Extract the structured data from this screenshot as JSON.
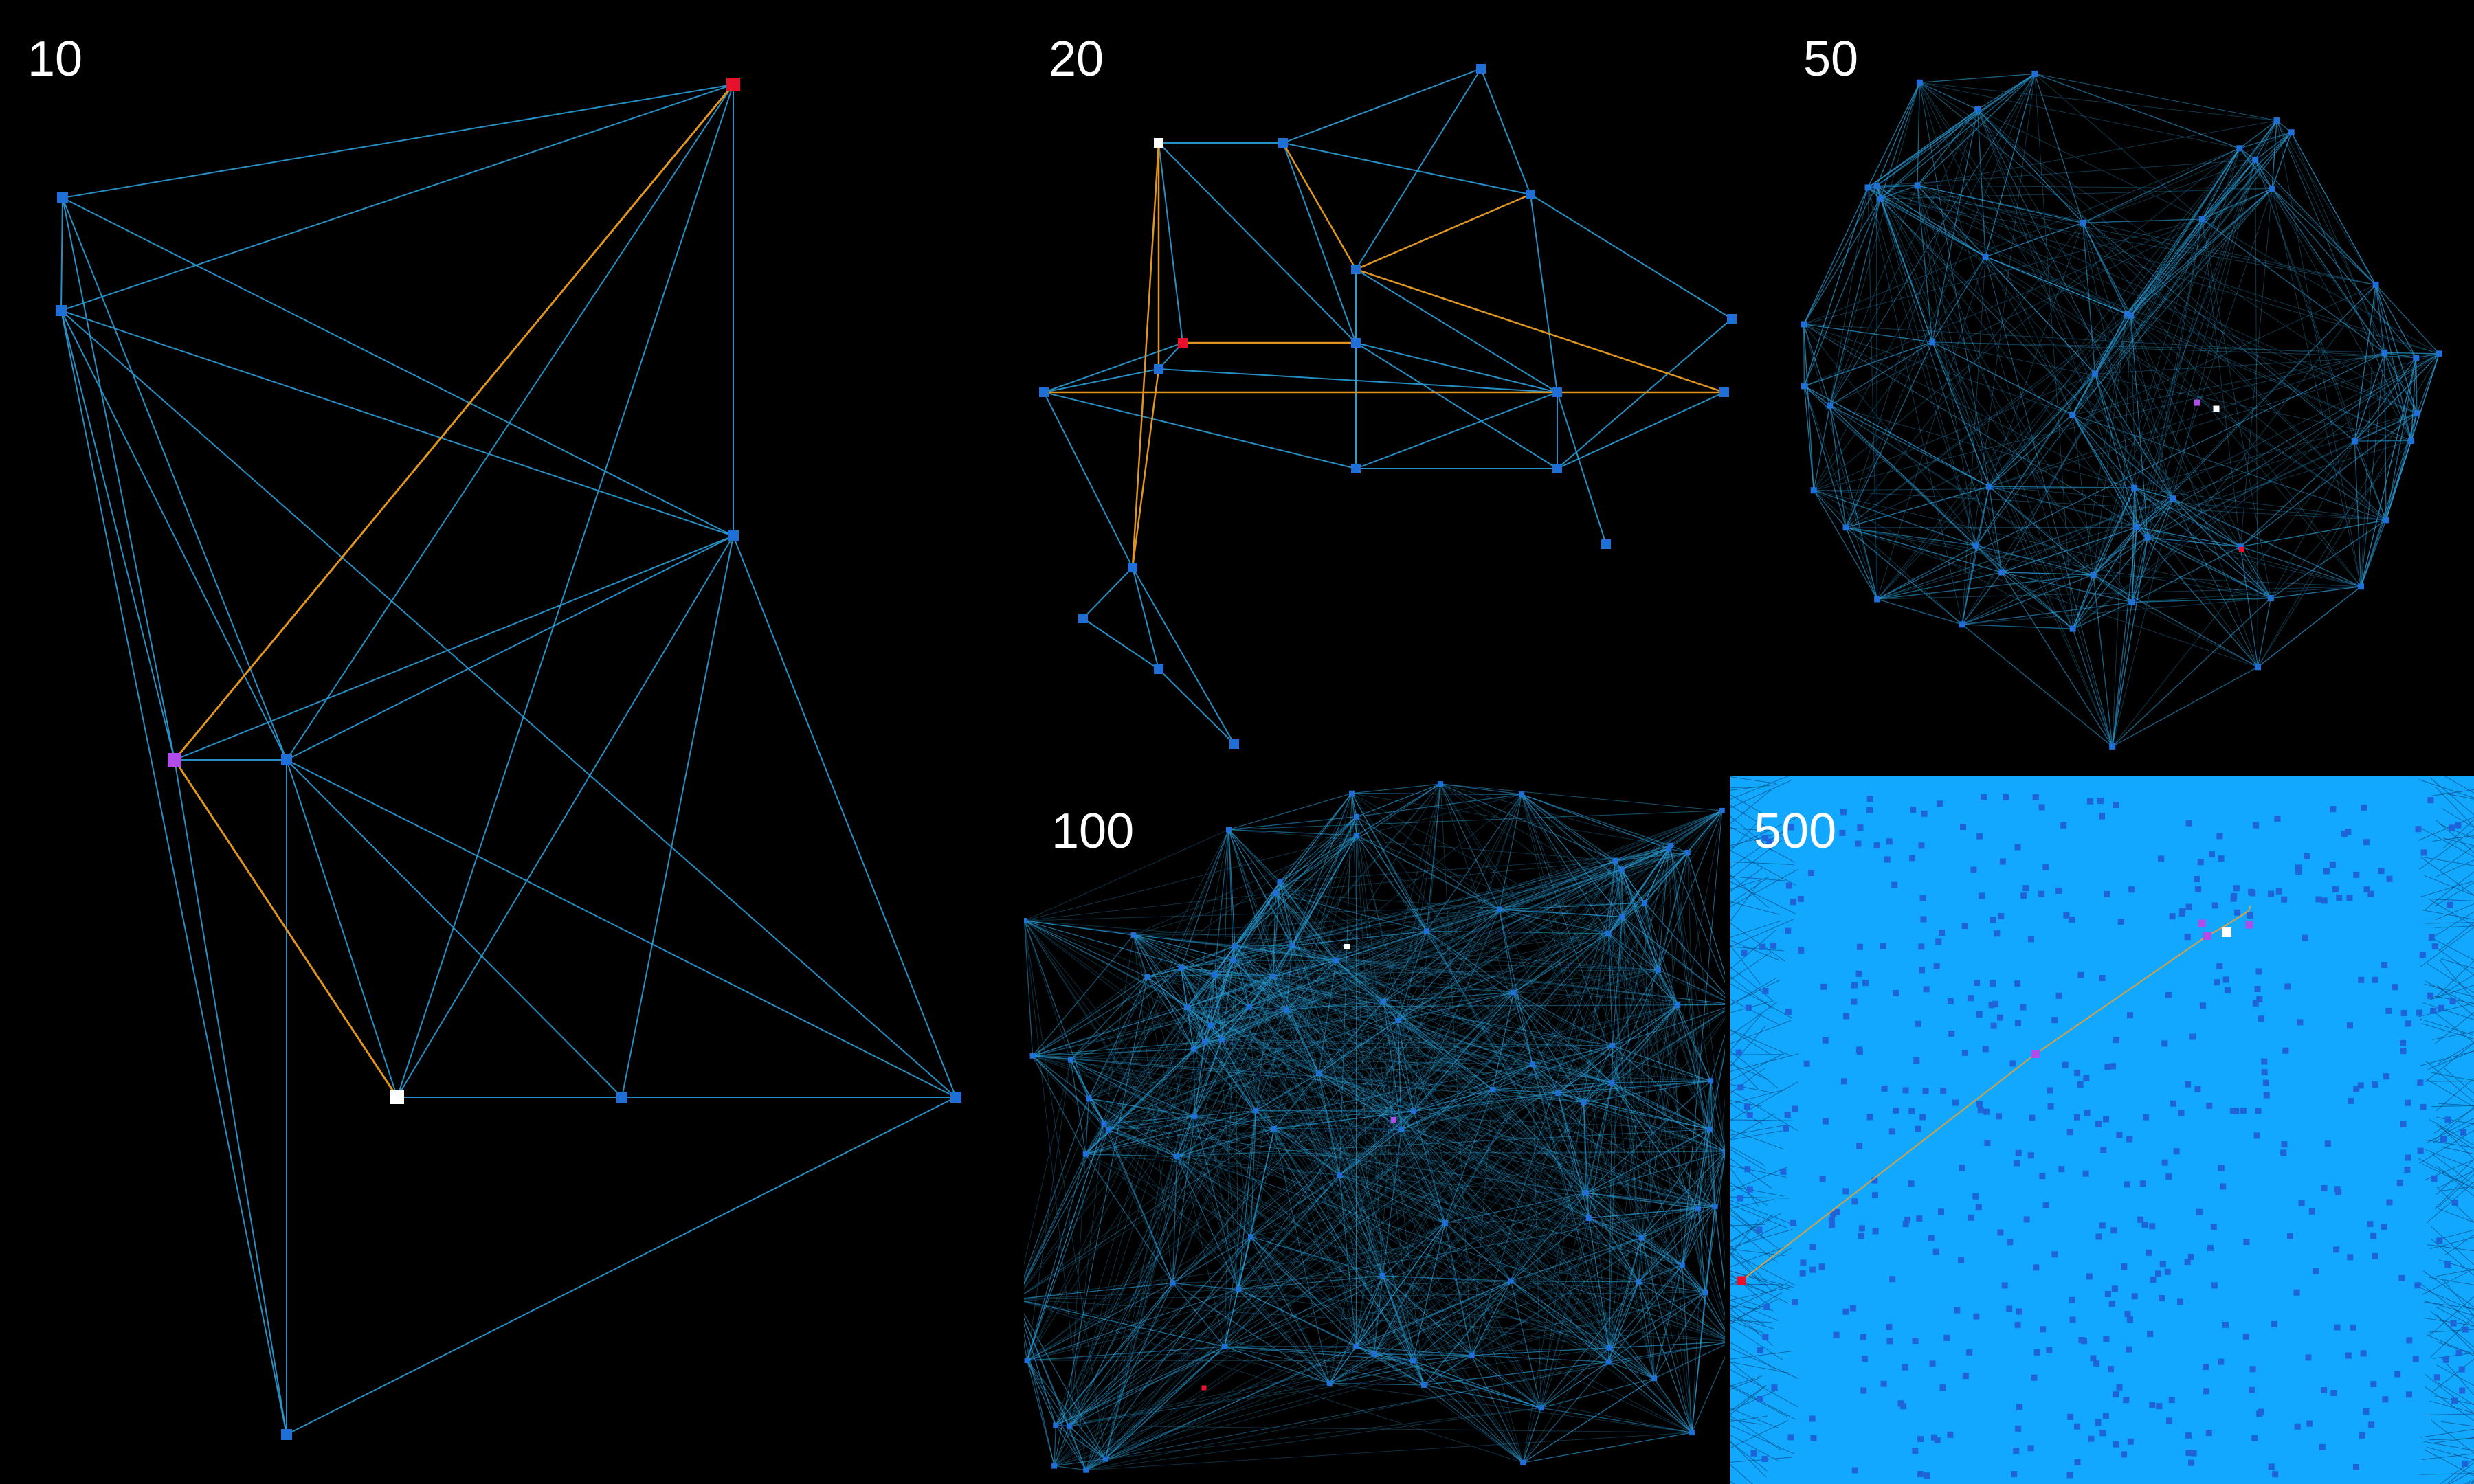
{
  "panels": [
    {
      "id": "p10",
      "label": "10"
    },
    {
      "id": "p20",
      "label": "20"
    },
    {
      "id": "p50",
      "label": "50"
    },
    {
      "id": "p100",
      "label": "100"
    },
    {
      "id": "p500",
      "label": "500"
    }
  ],
  "colors": {
    "background": "#000000",
    "edge": "#2a9fd8",
    "node": "#1f6fd6",
    "path_edge": "#e0961e",
    "start_node": "#ffffff",
    "goal_node": "#e8102a",
    "visited_node": "#b04ce8",
    "dense_fill": "#12a8ff"
  }
}
